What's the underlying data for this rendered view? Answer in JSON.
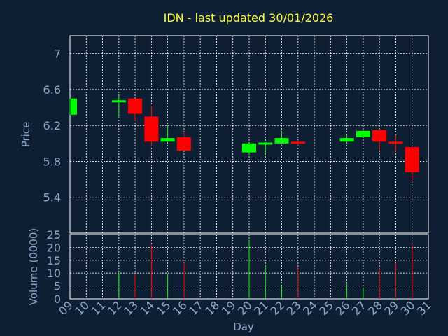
{
  "chart_data": [
    {
      "type": "candlestick",
      "title": "IDN - last updated 30/01/2026",
      "ylabel": "Price",
      "xlim": [
        9,
        31
      ],
      "ylim": [
        5.0,
        7.2
      ],
      "yticks": [
        5.4,
        5.8,
        6.2,
        6.6,
        7
      ],
      "ytick_labels": [
        "5.4",
        "5.8",
        "6.2",
        "6.6",
        "7"
      ],
      "grid": true,
      "up_color": "#00ff00",
      "down_color": "#ff0000",
      "candles": [
        {
          "x": 9,
          "open": 6.32,
          "close": 6.5,
          "high": 6.5,
          "low": 6.32
        },
        {
          "x": 12,
          "open": 6.46,
          "close": 6.48,
          "high": 6.54,
          "low": 6.3
        },
        {
          "x": 13,
          "open": 6.5,
          "close": 6.33,
          "high": 6.5,
          "low": 6.25
        },
        {
          "x": 14,
          "open": 6.3,
          "close": 6.02,
          "high": 6.42,
          "low": 5.97
        },
        {
          "x": 15,
          "open": 6.02,
          "close": 6.06,
          "high": 6.2,
          "low": 6.02
        },
        {
          "x": 16,
          "open": 6.07,
          "close": 5.92,
          "high": 6.13,
          "low": 5.92
        },
        {
          "x": 20,
          "open": 5.9,
          "close": 6.0,
          "high": 6.0,
          "low": 5.87
        },
        {
          "x": 21,
          "open": 6.0,
          "close": 6.01,
          "high": 6.01,
          "low": 5.88
        },
        {
          "x": 22,
          "open": 6.0,
          "close": 6.06,
          "high": 6.14,
          "low": 6.0
        },
        {
          "x": 23,
          "open": 6.02,
          "close": 6.0,
          "high": 6.04,
          "low": 5.98
        },
        {
          "x": 26,
          "open": 6.02,
          "close": 6.06,
          "high": 6.09,
          "low": 6.0
        },
        {
          "x": 27,
          "open": 6.07,
          "close": 6.14,
          "high": 6.15,
          "low": 6.07
        },
        {
          "x": 28,
          "open": 6.15,
          "close": 6.02,
          "high": 6.15,
          "low": 5.92
        },
        {
          "x": 29,
          "open": 6.02,
          "close": 6.0,
          "high": 6.09,
          "low": 5.9
        },
        {
          "x": 30,
          "open": 5.96,
          "close": 5.68,
          "high": 5.96,
          "low": 5.57
        }
      ]
    },
    {
      "type": "bar",
      "ylabel": "Volume (0000)",
      "xlabel": "Day",
      "xlim": [
        9,
        31
      ],
      "ylim": [
        0,
        25
      ],
      "yticks": [
        0,
        5,
        10,
        15,
        20,
        25
      ],
      "ytick_labels": [
        "0",
        "5",
        "10",
        "15",
        "20",
        "25"
      ],
      "xticks": [
        9,
        10,
        11,
        12,
        13,
        14,
        15,
        16,
        17,
        18,
        19,
        20,
        21,
        22,
        23,
        24,
        25,
        26,
        27,
        28,
        29,
        30,
        31
      ],
      "xtick_labels": [
        "09",
        "10",
        "11",
        "12",
        "13",
        "14",
        "15",
        "16",
        "17",
        "18",
        "19",
        "20",
        "21",
        "22",
        "23",
        "24",
        "25",
        "26",
        "27",
        "28",
        "29",
        "30",
        "31"
      ],
      "grid": true,
      "bars": [
        {
          "x": 12,
          "value": 10.5,
          "color": "#00ff00"
        },
        {
          "x": 13,
          "value": 9.5,
          "color": "#ff0000"
        },
        {
          "x": 14,
          "value": 21,
          "color": "#ff0000"
        },
        {
          "x": 15,
          "value": 9.5,
          "color": "#00ff00"
        },
        {
          "x": 16,
          "value": 14,
          "color": "#ff0000"
        },
        {
          "x": 20,
          "value": 23,
          "color": "#00ff00"
        },
        {
          "x": 21,
          "value": 13,
          "color": "#00ff00"
        },
        {
          "x": 22,
          "value": 5.5,
          "color": "#00ff00"
        },
        {
          "x": 23,
          "value": 12.5,
          "color": "#ff0000"
        },
        {
          "x": 26,
          "value": 6,
          "color": "#00ff00"
        },
        {
          "x": 27,
          "value": 4,
          "color": "#00ff00"
        },
        {
          "x": 28,
          "value": 12,
          "color": "#ff0000"
        },
        {
          "x": 29,
          "value": 14,
          "color": "#ff0000"
        },
        {
          "x": 30,
          "value": 21,
          "color": "#ff0000"
        }
      ]
    }
  ]
}
